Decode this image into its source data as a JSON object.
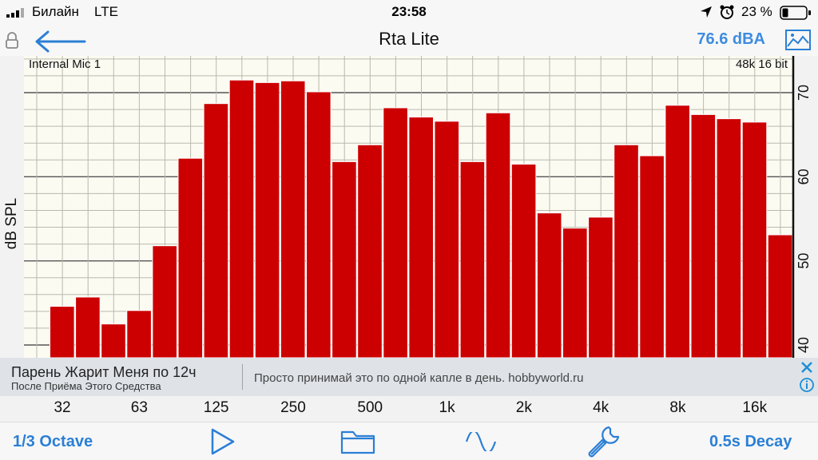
{
  "status": {
    "carrier": "Билайн",
    "network": "LTE",
    "time": "23:58",
    "battery": "23 %"
  },
  "nav": {
    "title": "Rta Lite",
    "level": "76.6 dBA",
    "icons": [
      "lock-icon",
      "back-arrow-icon",
      "image-icon"
    ]
  },
  "chart": {
    "input_label": "Internal Mic 1",
    "format_label": "48k 16 bit",
    "ylabel": "dB SPL",
    "bar_color": "#cc0000"
  },
  "chart_data": {
    "type": "bar",
    "title": "",
    "xlabel": "",
    "ylabel": "dB SPL",
    "ylim": [
      39,
      73
    ],
    "yticks": [
      40,
      50,
      60,
      70
    ],
    "x_tick_labels": [
      "32",
      "63",
      "125",
      "250",
      "500",
      "1k",
      "2k",
      "4k",
      "8k",
      "16k"
    ],
    "values": [
      44.6,
      45.7,
      42.5,
      44.1,
      51.8,
      62.2,
      68.7,
      71.5,
      71.2,
      71.4,
      70.1,
      61.8,
      63.8,
      68.2,
      67.1,
      66.6,
      61.8,
      67.6,
      61.5,
      55.7,
      53.9,
      55.2,
      63.8,
      62.5,
      68.5,
      67.4,
      66.9,
      66.5,
      53.1
    ],
    "grid": true
  },
  "ad": {
    "title": "Парень Жарит Меня по 12ч",
    "subtitle": "После Приёма Этого Средства",
    "description": "Просто принимай это по одной капле в день. hobbyworld.ru"
  },
  "toolbar": {
    "octave_label": "1/3 Octave",
    "decay_label": "0.5s Decay",
    "icons": [
      "play-icon",
      "folder-icon",
      "waveform-icon",
      "wrench-icon"
    ]
  }
}
